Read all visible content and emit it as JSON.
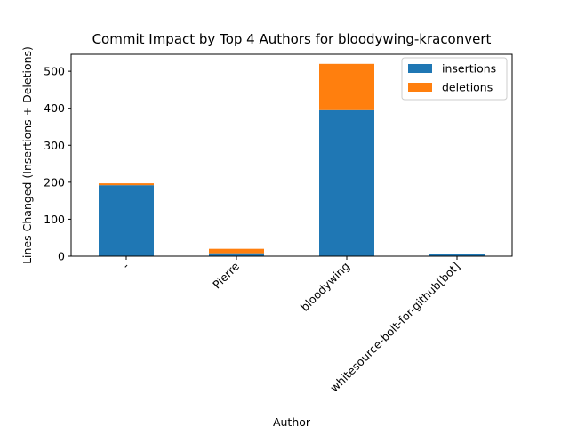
{
  "chart_data": {
    "type": "bar",
    "stacked": true,
    "title": "Commit Impact by Top 4 Authors for bloodywing-kraconvert",
    "xlabel": "Author",
    "ylabel": "Lines Changed (Insertions + Deletions)",
    "categories": [
      "-",
      "Pierre",
      "bloodywing",
      "whitesource-bolt-for-github[bot]"
    ],
    "series": [
      {
        "name": "insertions",
        "color": "#1f77b4",
        "values": [
          192,
          8,
          395,
          7
        ]
      },
      {
        "name": "deletions",
        "color": "#ff7f0e",
        "values": [
          5,
          12,
          125,
          0
        ]
      }
    ],
    "ylim": [
      0,
      546
    ],
    "yticks": [
      0,
      100,
      200,
      300,
      400,
      500
    ],
    "grid": false,
    "legend_position": "top-right"
  }
}
